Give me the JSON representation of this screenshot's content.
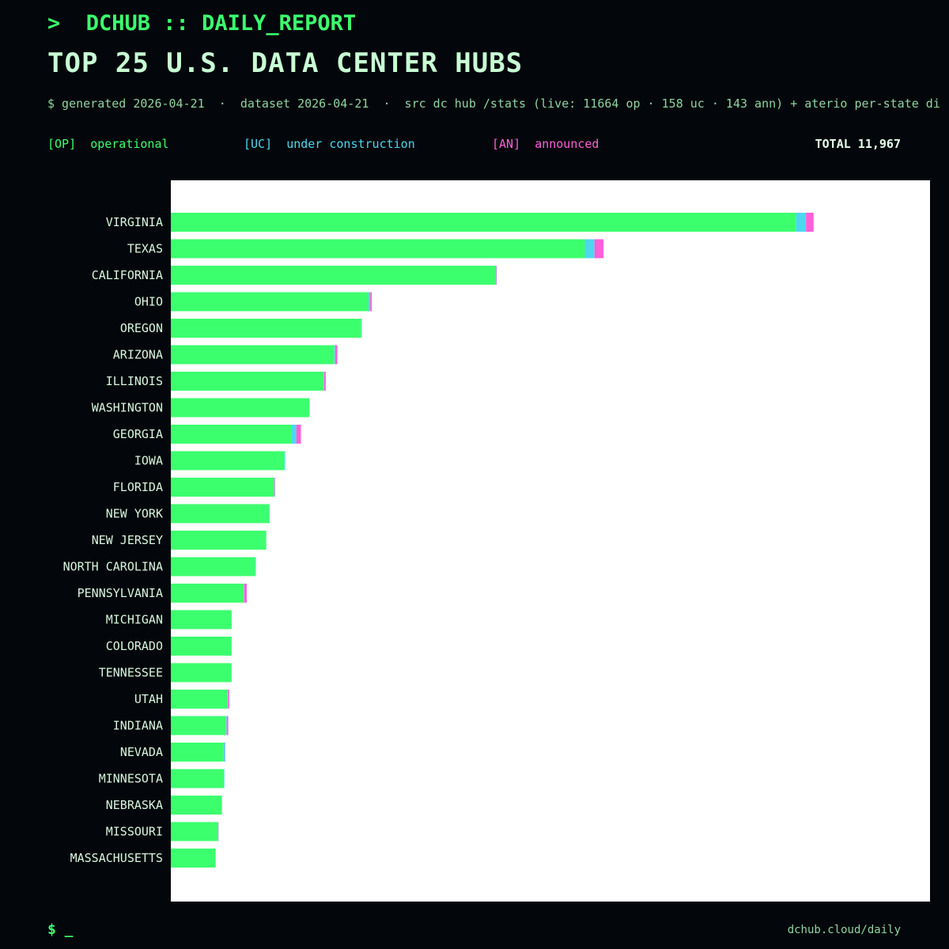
{
  "header": {
    "prompt": ">  DCHUB :: DAILY_REPORT",
    "title": "TOP 25 U.S. DATA CENTER HUBS",
    "meta": "$ generated 2026-04-21  ·  dataset 2026-04-21  ·  src dc hub /stats (live: 11664 op · 158 uc · 143 ann) + aterio per-state di"
  },
  "legend": {
    "op_tag": "[OP]",
    "op_label": "operational",
    "uc_tag": "[UC]",
    "uc_label": "under construction",
    "an_tag": "[AN]",
    "an_label": "announced",
    "total": "TOTAL 11,967"
  },
  "footer": {
    "prompt": "$ _",
    "url": "dchub.cloud/daily"
  },
  "colors": {
    "operational": "#3cff6e",
    "under_construction": "#4dd7f0",
    "announced": "#ff5fd8",
    "plot_bg": "#ffffff",
    "label": "#d8f5de"
  },
  "chart_data": {
    "type": "bar",
    "orientation": "horizontal",
    "stacked": true,
    "categories": [
      "VIRGINIA",
      "TEXAS",
      "CALIFORNIA",
      "OHIO",
      "OREGON",
      "ARIZONA",
      "ILLINOIS",
      "WASHINGTON",
      "GEORGIA",
      "IOWA",
      "FLORIDA",
      "NEW YORK",
      "NEW JERSEY",
      "NORTH CAROLINA",
      "PENNSYLVANIA",
      "MICHIGAN",
      "COLORADO",
      "TENNESSEE",
      "UTAH",
      "INDIANA",
      "NEVADA",
      "MINNESOTA",
      "NEBRASKA",
      "MISSOURI",
      "MASSACHUSETTS"
    ],
    "series": [
      {
        "name": "operational",
        "values": [
          2470,
          1636,
          1284,
          781,
          752,
          646,
          604,
          548,
          478,
          449,
          408,
          388,
          377,
          333,
          288,
          240,
          240,
          240,
          224,
          218,
          209,
          210,
          202,
          186,
          177
        ]
      },
      {
        "name": "under construction",
        "values": [
          40,
          38,
          2,
          7,
          2,
          3,
          2,
          0,
          18,
          3,
          2,
          2,
          0,
          3,
          2,
          0,
          0,
          0,
          2,
          3,
          5,
          2,
          0,
          2,
          0
        ]
      },
      {
        "name": "announced",
        "values": [
          30,
          36,
          2,
          6,
          1,
          9,
          6,
          0,
          18,
          0,
          2,
          1,
          0,
          0,
          10,
          0,
          0,
          0,
          5,
          6,
          1,
          0,
          0,
          1,
          0
        ]
      }
    ],
    "xlim": [
      0,
      3000
    ],
    "grid": false,
    "legend_position": "top"
  }
}
